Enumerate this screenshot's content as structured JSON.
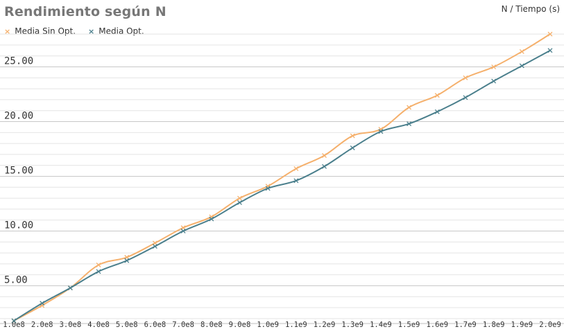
{
  "chart_data": {
    "type": "line",
    "title": "Rendimiento según N",
    "axis_note": "N / Tiempo (s)",
    "x_tick_labels": [
      "1.0e8",
      "2.0e8",
      "3.0e8",
      "4.0e8",
      "5.0e8",
      "6.0e8",
      "7.0e8",
      "8.0e8",
      "9.0e8",
      "1.0e9",
      "1.1e9",
      "1.2e9",
      "1.3e9",
      "1.4e9",
      "1.5e9",
      "1.6e9",
      "1.7e9",
      "1.8e9",
      "1.9e9",
      "2.0e9"
    ],
    "x": [
      100000000,
      200000000,
      300000000,
      400000000,
      500000000,
      600000000,
      700000000,
      800000000,
      900000000,
      1000000000,
      1100000000,
      1200000000,
      1300000000,
      1400000000,
      1500000000,
      1600000000,
      1700000000,
      1800000000,
      1900000000,
      2000000000
    ],
    "y_ticks": [
      5.0,
      10.0,
      15.0,
      20.0,
      25.0
    ],
    "y_tick_labels": [
      "5.00",
      "10.00",
      "15.00",
      "20.00",
      "25.00"
    ],
    "ylim": [
      1.8,
      28.2
    ],
    "grid": true,
    "legend_position": "top-left",
    "series": [
      {
        "name": "Media Sin Opt.",
        "color": "#f5b06c",
        "values": [
          1.8,
          3.2,
          4.8,
          6.9,
          7.6,
          8.9,
          10.3,
          11.3,
          13.0,
          14.1,
          15.7,
          16.9,
          18.7,
          19.3,
          21.3,
          22.4,
          24.0,
          25.0,
          26.4,
          28.0
        ]
      },
      {
        "name": "Media Opt.",
        "color": "#4a7f8c",
        "values": [
          1.8,
          3.4,
          4.8,
          6.3,
          7.3,
          8.6,
          10.0,
          11.1,
          12.6,
          13.9,
          14.6,
          15.9,
          17.6,
          19.1,
          19.8,
          20.9,
          22.2,
          23.7,
          25.1,
          26.5
        ]
      }
    ]
  }
}
